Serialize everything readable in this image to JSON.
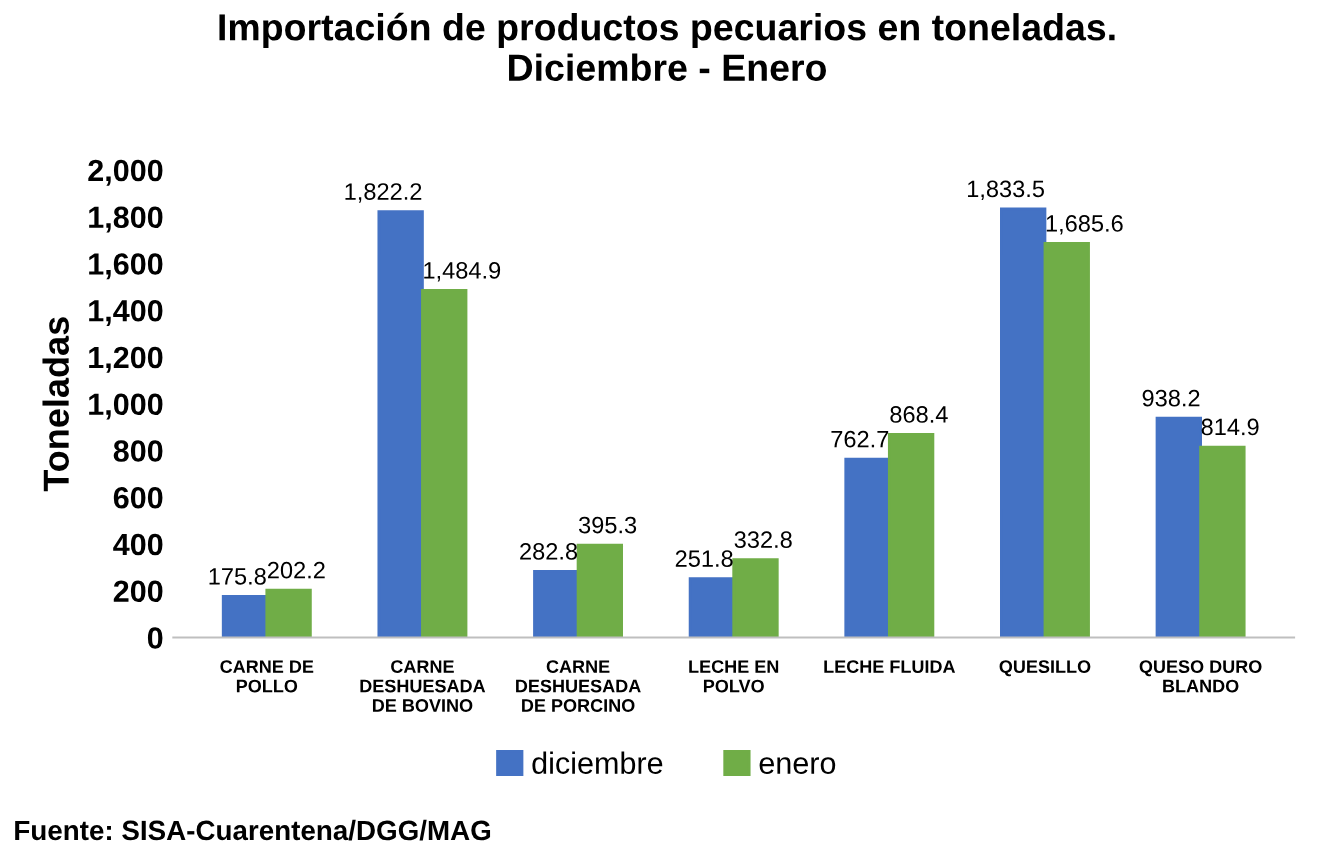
{
  "chart_data": {
    "type": "bar",
    "title": "Importación de productos pecuarios en toneladas.\nDiciembre - Enero",
    "ylabel": "Toneladas",
    "categories": [
      "CARNE DE\nPOLLO",
      "CARNE\nDESHUESADA\nDE BOVINO",
      "CARNE\nDESHUESADA\nDE PORCINO",
      "LECHE EN\nPOLVO",
      "LECHE FLUIDA",
      "QUESILLO",
      "QUESO DURO\nBLANDO"
    ],
    "series": [
      {
        "name": "diciembre",
        "color": "#4472c4",
        "values": [
          175.8,
          1822.2,
          282.8,
          251.8,
          762.7,
          1833.5,
          938.2
        ],
        "value_labels": [
          "175.8",
          "1,822.2",
          "282.8",
          "251.8",
          "762.7",
          "1,833.5",
          "938.2"
        ]
      },
      {
        "name": "enero",
        "color": "#70ad47",
        "values": [
          202.2,
          1484.9,
          395.3,
          332.8,
          868.4,
          1685.6,
          814.9
        ],
        "value_labels": [
          "202.2",
          "1,484.9",
          "395.3",
          "332.8",
          "868.4",
          "1,685.6",
          "814.9"
        ]
      }
    ],
    "ylim": [
      0,
      2000
    ],
    "yticks": [
      0,
      200,
      400,
      600,
      800,
      {
        "value": 1000,
        "label": "1,000"
      },
      {
        "value": 1200,
        "label": "1,200"
      },
      {
        "value": 1400,
        "label": "1,400"
      },
      {
        "value": 1600,
        "label": "1,600"
      },
      {
        "value": 1800,
        "label": "1,800"
      },
      {
        "value": 2000,
        "label": "2,000"
      }
    ],
    "grid": false,
    "legend": "bottom",
    "annotations": [
      "Fuente: SISA-Cuarentena/DGG/MAG"
    ]
  }
}
